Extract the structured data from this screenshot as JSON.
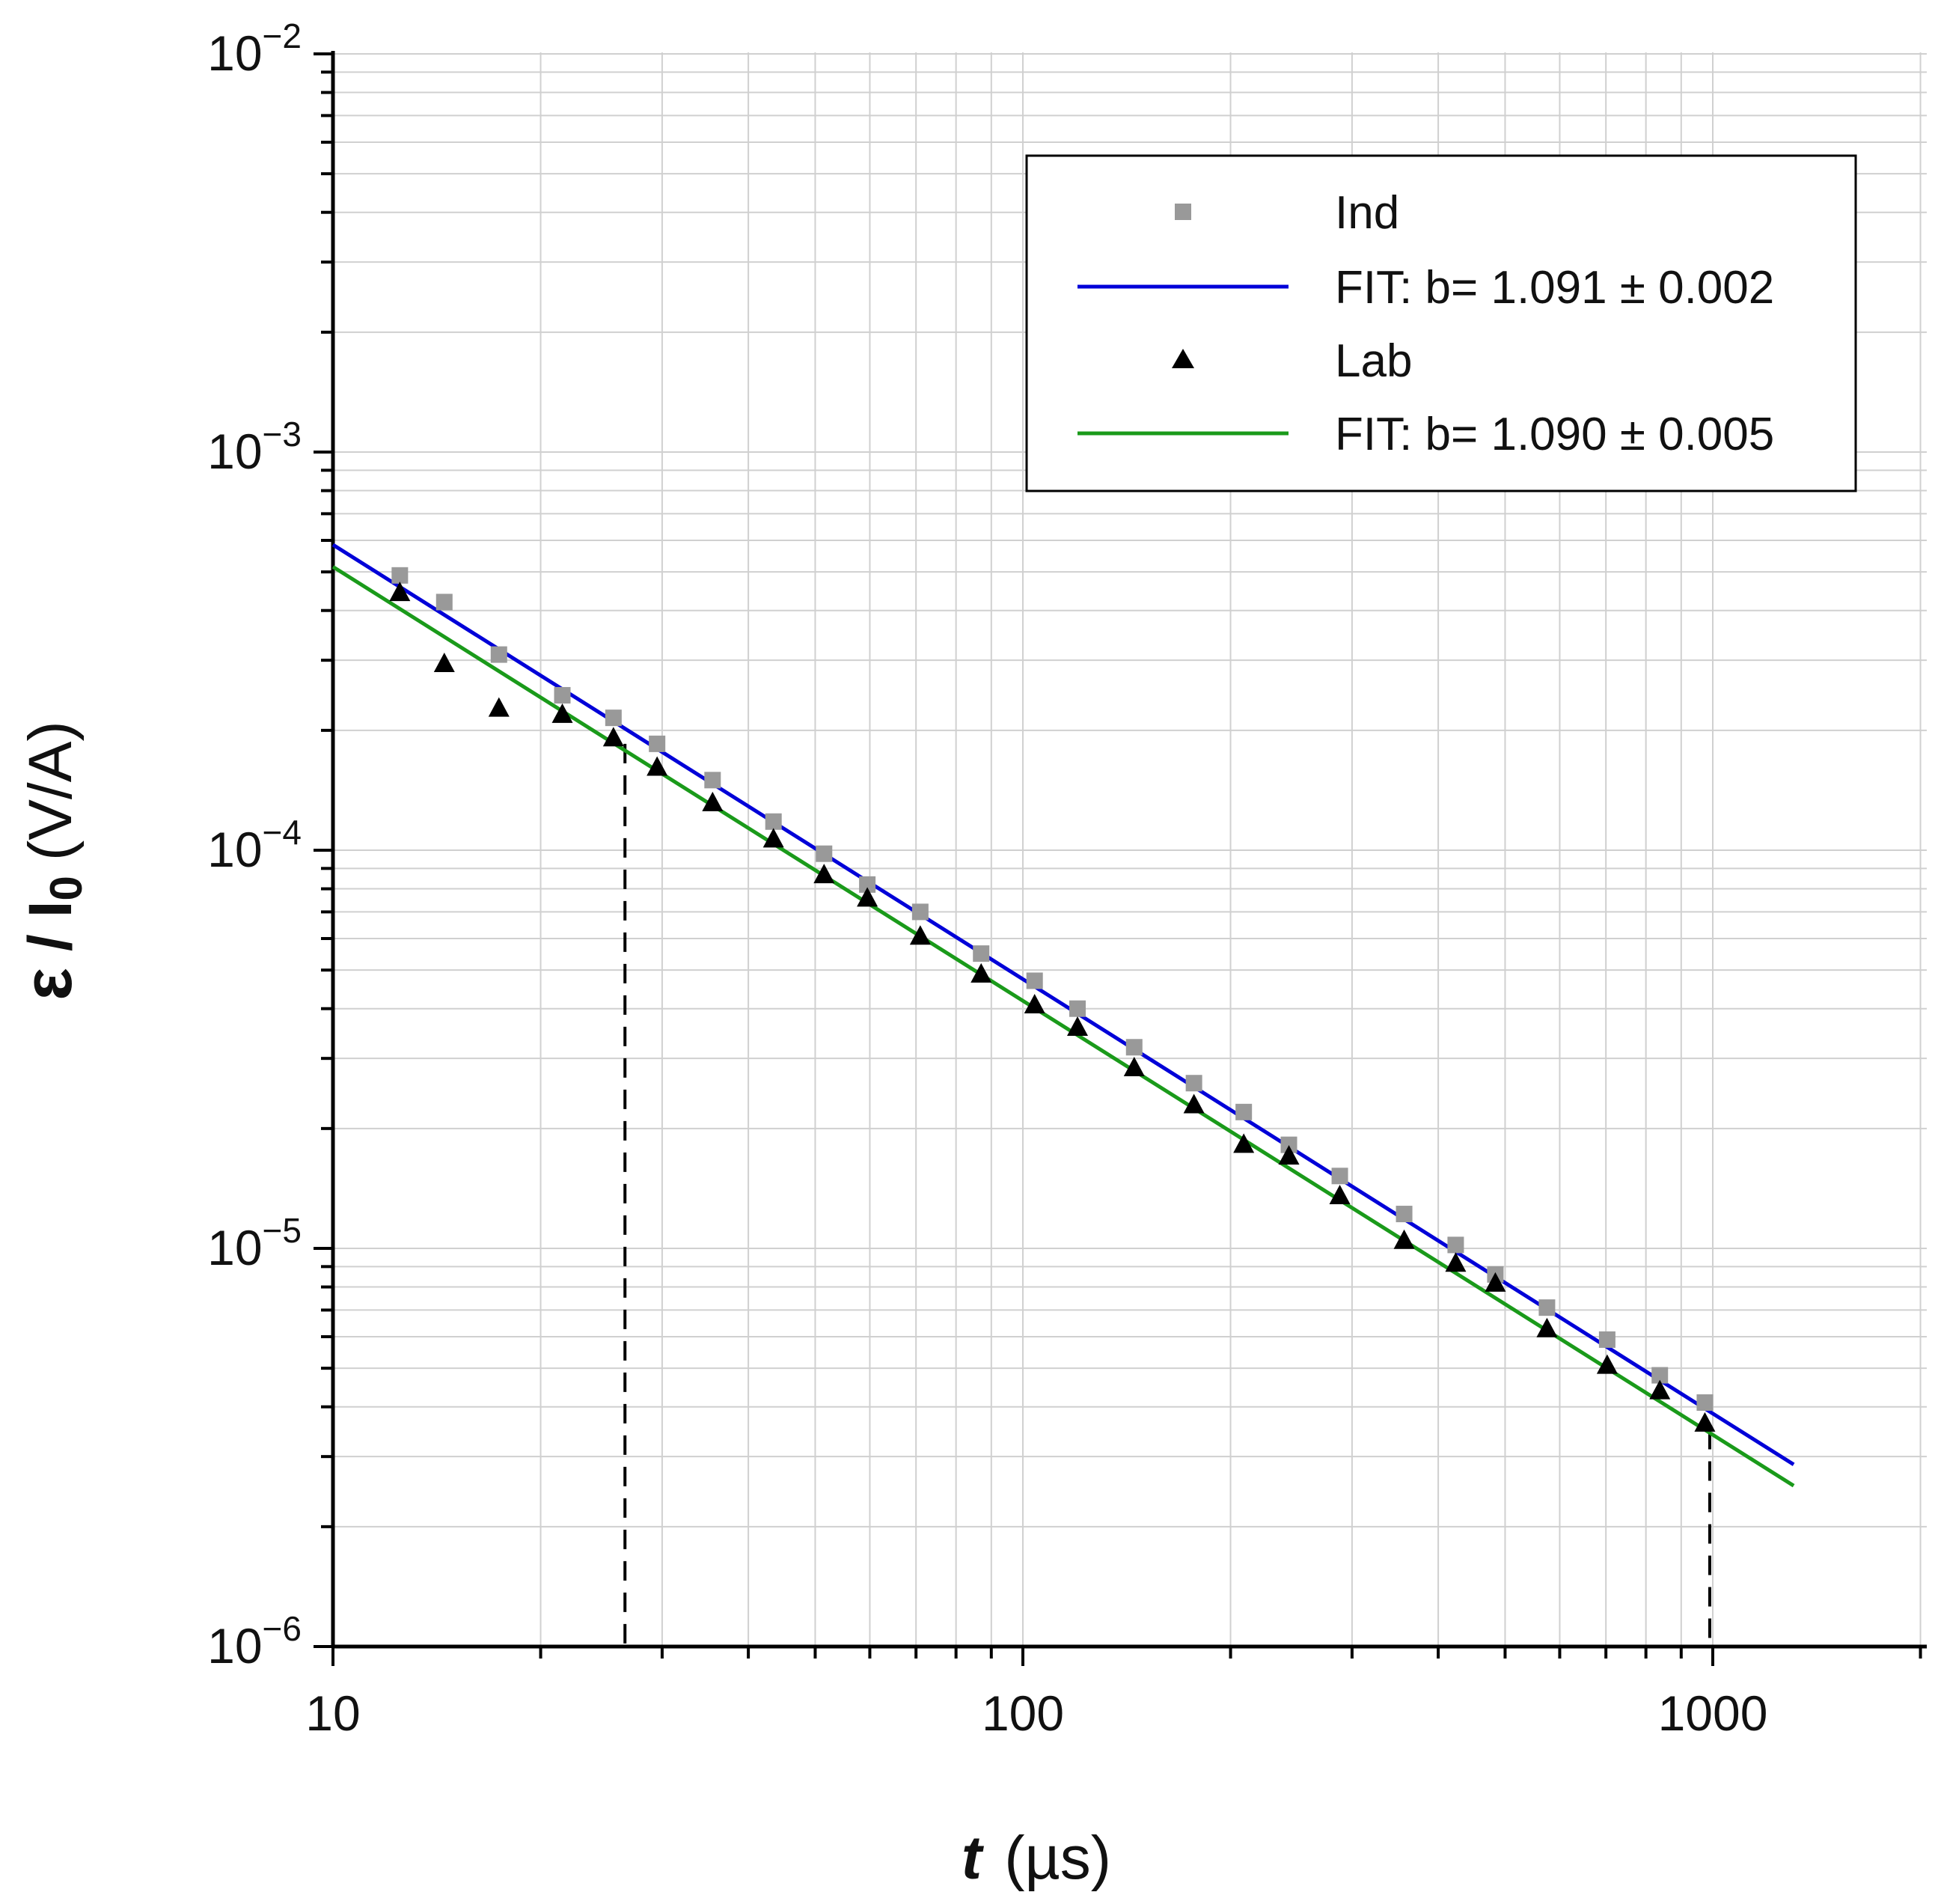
{
  "chart_data": {
    "type": "scatter",
    "title": "",
    "xlabel": {
      "symbol": "t",
      "unit": "(µs)"
    },
    "ylabel": {
      "symbol": "ε",
      "separator": "/",
      "current": "I",
      "current_sub": "0",
      "unit": "(V/A)"
    },
    "x_scale": "log",
    "y_scale": "log",
    "xlim": [
      10,
      2300
    ],
    "ylim": [
      1e-06,
      0.01
    ],
    "grid": true,
    "x_ticks": [
      {
        "value": 10,
        "label": "10"
      },
      {
        "value": 100,
        "label": "100"
      },
      {
        "value": 1000,
        "label": "1000"
      }
    ],
    "y_ticks": [
      {
        "value": 0.01,
        "base": "10",
        "exp": "−2"
      },
      {
        "value": 0.001,
        "base": "10",
        "exp": "−3"
      },
      {
        "value": 0.0001,
        "base": "10",
        "exp": "−4"
      },
      {
        "value": 1e-05,
        "base": "10",
        "exp": "−5"
      },
      {
        "value": 1e-06,
        "base": "10",
        "exp": "−6"
      }
    ],
    "legend_position": "top-right",
    "series": [
      {
        "name": "Ind",
        "kind": "points",
        "marker": "square",
        "color": "#999999",
        "points": [
          [
            12.5,
            0.00049
          ],
          [
            14.5,
            0.00042
          ],
          [
            17.4,
            0.00031
          ],
          [
            21.5,
            0.000245
          ],
          [
            25.5,
            0.000215
          ],
          [
            29.5,
            0.000185
          ],
          [
            35.5,
            0.00015
          ],
          [
            43.5,
            0.000118
          ],
          [
            51.5,
            9.8e-05
          ],
          [
            59.5,
            8.2e-05
          ],
          [
            71,
            7e-05
          ],
          [
            87,
            5.5e-05
          ],
          [
            104,
            4.7e-05
          ],
          [
            120,
            4e-05
          ],
          [
            145,
            3.2e-05
          ],
          [
            177,
            2.6e-05
          ],
          [
            209,
            2.2e-05
          ],
          [
            243,
            1.82e-05
          ],
          [
            288,
            1.52e-05
          ],
          [
            357,
            1.22e-05
          ],
          [
            424,
            1.02e-05
          ],
          [
            484,
            8.6e-06
          ],
          [
            575,
            7.1e-06
          ],
          [
            703,
            5.9e-06
          ],
          [
            838,
            4.8e-06
          ],
          [
            974,
            4.1e-06
          ]
        ]
      },
      {
        "name": "FIT: b= 1.091 ± 0.002",
        "kind": "line",
        "color": "#0000d8",
        "x_range": [
          10,
          1310
        ],
        "y_at_10": 0.000585,
        "slope": -1.091
      },
      {
        "name": "Lab",
        "kind": "points",
        "marker": "triangle",
        "color": "#000000",
        "points": [
          [
            12.5,
            0.000445
          ],
          [
            14.5,
            0.000295
          ],
          [
            17.4,
            0.000228
          ],
          [
            21.5,
            0.00022
          ],
          [
            25.5,
            0.000192
          ],
          [
            29.5,
            0.000162
          ],
          [
            35.5,
            0.000132
          ],
          [
            43.5,
            0.000107
          ],
          [
            51.5,
            8.7e-05
          ],
          [
            59.5,
            7.6e-05
          ],
          [
            71,
            6.1e-05
          ],
          [
            87,
            4.9e-05
          ],
          [
            104,
            4.1e-05
          ],
          [
            120,
            3.6e-05
          ],
          [
            145,
            2.85e-05
          ],
          [
            177,
            2.3e-05
          ],
          [
            209,
            1.83e-05
          ],
          [
            243,
            1.71e-05
          ],
          [
            288,
            1.36e-05
          ],
          [
            357,
            1.05e-05
          ],
          [
            424,
            9.2e-06
          ],
          [
            484,
            8.2e-06
          ],
          [
            575,
            6.3e-06
          ],
          [
            703,
            5.1e-06
          ],
          [
            838,
            4.4e-06
          ],
          [
            974,
            3.65e-06
          ]
        ]
      },
      {
        "name": "FIT: b= 1.090 ± 0.005",
        "kind": "line",
        "color": "#1a9a1a",
        "x_range": [
          10,
          1310
        ],
        "y_at_10": 0.000515,
        "slope": -1.09
      }
    ],
    "annotations": [
      {
        "kind": "dashed-vertical",
        "x": 26.5,
        "from_y": 1e-06,
        "to_y": 0.000185,
        "color": "#000000"
      },
      {
        "kind": "dashed-vertical",
        "x": 990,
        "from_y": 1e-06,
        "to_y": 3.5e-06,
        "color": "#000000"
      }
    ]
  },
  "legend": {
    "entries": [
      "Ind",
      "FIT: b= 1.091 ± 0.002",
      "Lab",
      "FIT: b= 1.090 ± 0.005"
    ]
  },
  "colors": {
    "grid": "#d0d0d0",
    "axis": "#000000",
    "background": "#ffffff"
  }
}
